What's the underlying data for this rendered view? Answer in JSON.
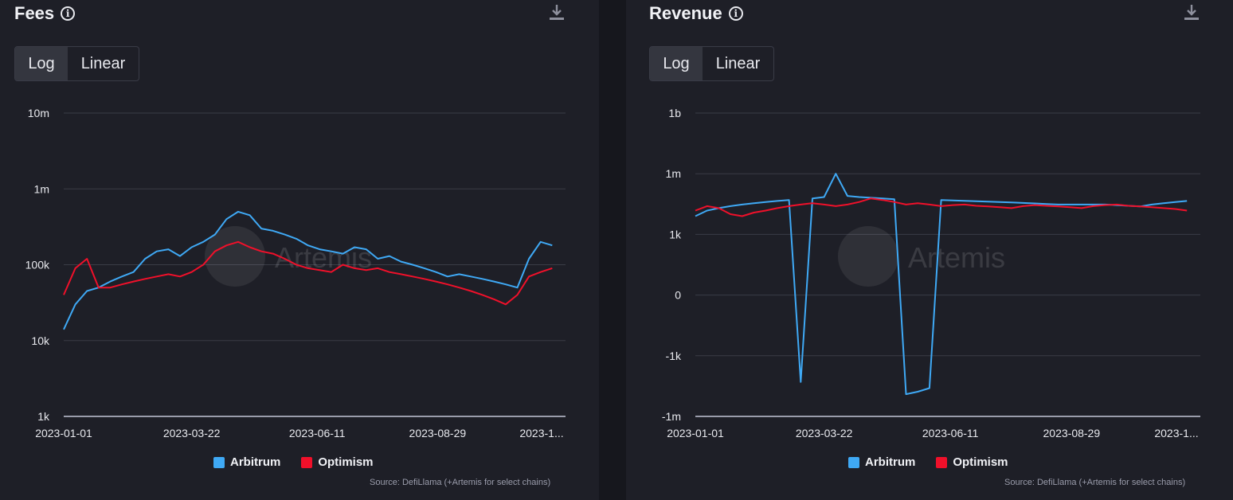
{
  "panels": {
    "fees": {
      "title": "Fees",
      "toggle": {
        "log": "Log",
        "linear": "Linear",
        "selected": "Log"
      },
      "source": "Source: DefiLlama (+Artemis for select chains)",
      "watermark": "Artemis"
    },
    "revenue": {
      "title": "Revenue",
      "toggle": {
        "log": "Log",
        "linear": "Linear",
        "selected": "Log"
      },
      "source": "Source: DefiLlama (+Artemis for select chains)",
      "watermark": "Artemis"
    }
  },
  "legend": {
    "arbitrum": "Arbitrum",
    "optimism": "Optimism"
  },
  "colors": {
    "arbitrum": "#3fa9f5",
    "optimism": "#f0102a",
    "background": "#1e1f27",
    "grid": "#3a3c47"
  },
  "icons": [
    "info-icon",
    "download-icon"
  ],
  "chart_data": [
    {
      "type": "line",
      "title": "Fees",
      "scale": "log",
      "x_ticks": [
        "2023-01-01",
        "2023-03-22",
        "2023-06-11",
        "2023-08-29",
        "2023-1..."
      ],
      "y_ticks": [
        "1k",
        "10k",
        "100k",
        "1m",
        "10m"
      ],
      "y_tick_values": [
        1000,
        10000,
        100000,
        1000000,
        10000000
      ],
      "x": [
        "2023-01-01",
        "2023-01-08",
        "2023-01-15",
        "2023-01-22",
        "2023-01-29",
        "2023-02-05",
        "2023-02-12",
        "2023-02-19",
        "2023-02-26",
        "2023-03-05",
        "2023-03-12",
        "2023-03-19",
        "2023-03-26",
        "2023-04-02",
        "2023-04-09",
        "2023-04-16",
        "2023-04-23",
        "2023-04-30",
        "2023-05-07",
        "2023-05-14",
        "2023-05-21",
        "2023-05-28",
        "2023-06-04",
        "2023-06-11",
        "2023-06-18",
        "2023-06-25",
        "2023-07-02",
        "2023-07-09",
        "2023-07-16",
        "2023-07-23",
        "2023-07-30",
        "2023-08-06",
        "2023-08-13",
        "2023-08-20",
        "2023-08-27",
        "2023-09-03",
        "2023-09-10",
        "2023-09-17",
        "2023-09-24",
        "2023-10-01",
        "2023-10-08",
        "2023-10-15",
        "2023-10-22"
      ],
      "series": [
        {
          "name": "Arbitrum",
          "values": [
            14000,
            30000,
            45000,
            50000,
            60000,
            70000,
            80000,
            120000,
            150000,
            160000,
            130000,
            170000,
            200000,
            250000,
            400000,
            500000,
            450000,
            300000,
            280000,
            250000,
            220000,
            180000,
            160000,
            150000,
            140000,
            170000,
            160000,
            120000,
            130000,
            110000,
            100000,
            90000,
            80000,
            70000,
            75000,
            70000,
            65000,
            60000,
            55000,
            50000,
            120000,
            200000,
            180000
          ]
        },
        {
          "name": "Optimism",
          "values": [
            40000,
            90000,
            120000,
            50000,
            50000,
            55000,
            60000,
            65000,
            70000,
            75000,
            70000,
            80000,
            100000,
            150000,
            180000,
            200000,
            170000,
            150000,
            140000,
            120000,
            100000,
            90000,
            85000,
            80000,
            100000,
            90000,
            85000,
            90000,
            80000,
            75000,
            70000,
            65000,
            60000,
            55000,
            50000,
            45000,
            40000,
            35000,
            30000,
            40000,
            70000,
            80000,
            90000
          ]
        }
      ]
    },
    {
      "type": "line",
      "title": "Revenue",
      "scale": "symlog",
      "x_ticks": [
        "2023-01-01",
        "2023-03-22",
        "2023-06-11",
        "2023-08-29",
        "2023-1..."
      ],
      "y_ticks": [
        "-1m",
        "-1k",
        "0",
        "1k",
        "1m",
        "1b"
      ],
      "y_tick_values": [
        -1000000,
        -1000,
        0,
        1000,
        1000000,
        1000000000
      ],
      "x": [
        "2023-01-01",
        "2023-01-08",
        "2023-01-15",
        "2023-01-22",
        "2023-01-29",
        "2023-02-05",
        "2023-02-12",
        "2023-02-19",
        "2023-02-26",
        "2023-03-05",
        "2023-03-12",
        "2023-03-19",
        "2023-03-26",
        "2023-04-02",
        "2023-04-09",
        "2023-04-16",
        "2023-04-23",
        "2023-04-30",
        "2023-05-07",
        "2023-05-14",
        "2023-05-21",
        "2023-05-28",
        "2023-06-04",
        "2023-06-11",
        "2023-06-18",
        "2023-06-25",
        "2023-07-02",
        "2023-07-09",
        "2023-07-16",
        "2023-07-23",
        "2023-07-30",
        "2023-08-06",
        "2023-08-13",
        "2023-08-20",
        "2023-08-27",
        "2023-09-03",
        "2023-09-10",
        "2023-09-17",
        "2023-09-24",
        "2023-10-01",
        "2023-10-08",
        "2023-10-15",
        "2023-10-22"
      ],
      "series": [
        {
          "name": "Arbitrum",
          "values": [
            8000,
            15000,
            20000,
            25000,
            30000,
            35000,
            40000,
            45000,
            50000,
            -20000,
            60000,
            70000,
            1000000,
            80000,
            70000,
            65000,
            60000,
            55000,
            -80000,
            -60000,
            -40000,
            50000,
            48000,
            46000,
            44000,
            42000,
            40000,
            38000,
            36000,
            34000,
            32000,
            30000,
            30000,
            30000,
            30000,
            30000,
            28000,
            26000,
            24000,
            30000,
            35000,
            40000,
            45000
          ]
        },
        {
          "name": "Optimism",
          "values": [
            15000,
            25000,
            20000,
            10000,
            8000,
            12000,
            15000,
            20000,
            25000,
            30000,
            35000,
            30000,
            25000,
            30000,
            40000,
            60000,
            50000,
            40000,
            30000,
            35000,
            30000,
            25000,
            28000,
            30000,
            26000,
            24000,
            22000,
            20000,
            25000,
            28000,
            26000,
            24000,
            22000,
            20000,
            25000,
            28000,
            30000,
            26000,
            24000,
            22000,
            20000,
            18000,
            15000
          ]
        }
      ]
    }
  ]
}
